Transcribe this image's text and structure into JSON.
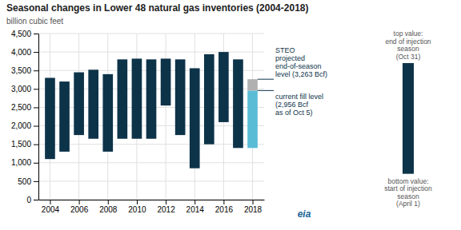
{
  "chart_data": {
    "type": "bar",
    "title": "Seasonal changes in Lower 48 natural gas inventories (2004-2018)",
    "y_label": "billion cubic feet",
    "xlim": [
      2003.2,
      2018.8
    ],
    "xticks": [
      2004,
      2006,
      2008,
      2010,
      2012,
      2014,
      2016,
      2018
    ],
    "ylim": [
      0,
      4500
    ],
    "yticks": [
      0,
      500,
      {
        "value": 1000,
        "label": "1,000"
      },
      {
        "value": 1500,
        "label": "1,500"
      },
      {
        "value": 2000,
        "label": "2,000"
      },
      {
        "value": 2500,
        "label": "2,500"
      },
      {
        "value": 3000,
        "label": "3,000"
      },
      {
        "value": 3500,
        "label": "3,500"
      },
      {
        "value": 4000,
        "label": "4,000"
      },
      {
        "value": 4500,
        "label": "4,500"
      }
    ],
    "grid": true,
    "series": [
      {
        "color": "#0d3349",
        "x": [
          2004,
          2005,
          2006,
          2007,
          2008,
          2009,
          2010,
          2011,
          2012,
          2013,
          2014,
          2015,
          2016,
          2017
        ],
        "bottoms": [
          1100,
          1300,
          1750,
          1650,
          1300,
          1650,
          1650,
          1650,
          2550,
          1750,
          850,
          1500,
          2100,
          1400
        ],
        "tops": [
          3300,
          3200,
          3450,
          3520,
          3400,
          3800,
          3820,
          3800,
          3820,
          3800,
          3560,
          3940,
          4000,
          3800
        ]
      },
      {
        "color": "#5bbcd6",
        "x": [
          2018
        ],
        "bottoms": [
          1400
        ],
        "tops": [
          2956
        ]
      },
      {
        "color": "#b0b0b0",
        "x": [
          2018
        ],
        "bottoms": [
          2956
        ],
        "tops": [
          3263
        ]
      }
    ],
    "annotations": [
      {
        "text": "STEO\nprojected\nend-of-season\nlevel (3,263 Bcf)",
        "y": 3263
      },
      {
        "text": "current fill level\n(2,956 Bcf\nas of Oct 5)",
        "y": 2956
      }
    ],
    "key_bar": {
      "color": "#0d3349",
      "top": 3700,
      "bottom": 700,
      "top_label": "top value:\nend of injection\nseason\n(Oct 31)",
      "bottom_label": "bottom value:\nstart of injection\nseason\n(April 1)"
    },
    "logo": "eia"
  }
}
